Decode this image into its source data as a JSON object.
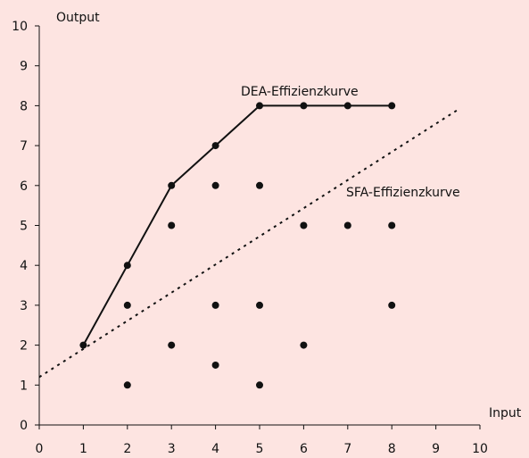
{
  "chart_data": {
    "type": "scatter",
    "xlabel": "Input",
    "ylabel": "Output",
    "xlim": [
      0,
      10
    ],
    "ylim": [
      0,
      10
    ],
    "xticks": [
      "0",
      "1",
      "2",
      "3",
      "4",
      "5",
      "6",
      "7",
      "8",
      "9",
      "10"
    ],
    "yticks": [
      "0",
      "1",
      "2",
      "3",
      "4",
      "5",
      "6",
      "7",
      "8",
      "9",
      "10"
    ],
    "grid": false,
    "points": [
      {
        "x": 1,
        "y": 2
      },
      {
        "x": 2,
        "y": 4
      },
      {
        "x": 2,
        "y": 3
      },
      {
        "x": 2,
        "y": 1
      },
      {
        "x": 3,
        "y": 6
      },
      {
        "x": 3,
        "y": 5
      },
      {
        "x": 3,
        "y": 2
      },
      {
        "x": 4,
        "y": 7
      },
      {
        "x": 4,
        "y": 6
      },
      {
        "x": 4,
        "y": 3
      },
      {
        "x": 4,
        "y": 1.5
      },
      {
        "x": 5,
        "y": 8
      },
      {
        "x": 5,
        "y": 6
      },
      {
        "x": 5,
        "y": 3
      },
      {
        "x": 5,
        "y": 1
      },
      {
        "x": 6,
        "y": 8
      },
      {
        "x": 6,
        "y": 5
      },
      {
        "x": 6,
        "y": 2
      },
      {
        "x": 7,
        "y": 8
      },
      {
        "x": 7,
        "y": 5
      },
      {
        "x": 8,
        "y": 8
      },
      {
        "x": 8,
        "y": 5
      },
      {
        "x": 8,
        "y": 3
      }
    ],
    "dea_curve": {
      "label": "DEA-Effizienzkurve",
      "style": "solid",
      "x": [
        1,
        2,
        3,
        4,
        5,
        6,
        7,
        8
      ],
      "y": [
        2,
        4,
        6,
        7,
        8,
        8,
        8,
        8
      ]
    },
    "sfa_curve": {
      "label": "SFA-Effizienzkurve",
      "style": "dotted",
      "x": [
        0,
        9.5
      ],
      "y": [
        1.2,
        7.9
      ]
    }
  },
  "colors": {
    "background": "#fde4e1",
    "ink": "#111111"
  }
}
